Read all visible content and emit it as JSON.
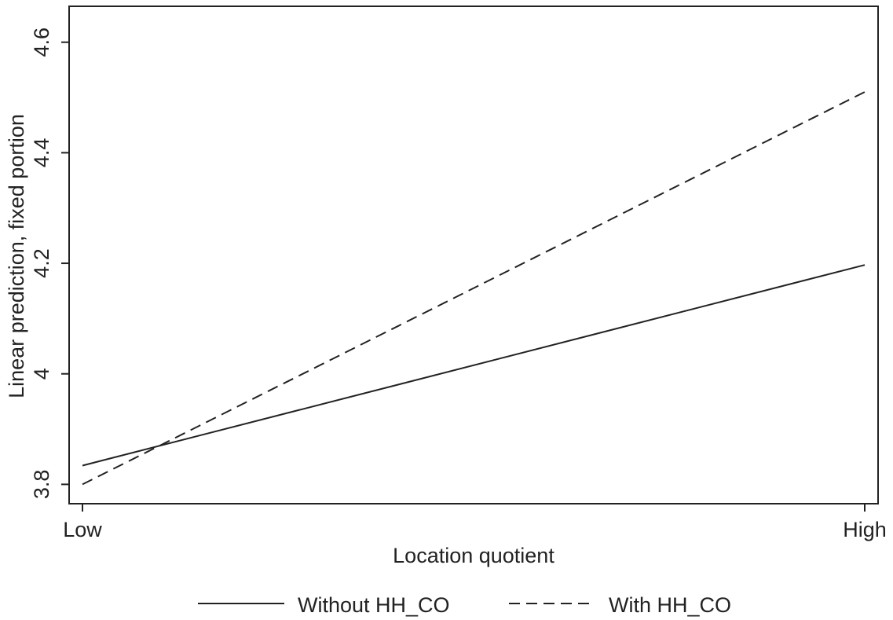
{
  "chart_data": {
    "type": "line",
    "title": "",
    "xlabel": "Location quotient",
    "ylabel": "Linear prediction, fixed portion",
    "x_categories": [
      "Low",
      "High"
    ],
    "ylim": [
      3.765,
      4.665
    ],
    "yticks": [
      3.8,
      4,
      4.2,
      4.4,
      4.6
    ],
    "ytick_labels": [
      "3.8",
      "4",
      "4.2",
      "4.4",
      "4.6"
    ],
    "grid": false,
    "legend_position": "bottom",
    "series": [
      {
        "name": "Without HH_CO",
        "style": "solid",
        "values": [
          3.834,
          4.197
        ]
      },
      {
        "name": "With HH_CO",
        "style": "dashed",
        "values": [
          3.8,
          4.51
        ]
      }
    ],
    "colors": {
      "line": "#222222",
      "axis": "#222222",
      "background": "#ffffff"
    }
  }
}
